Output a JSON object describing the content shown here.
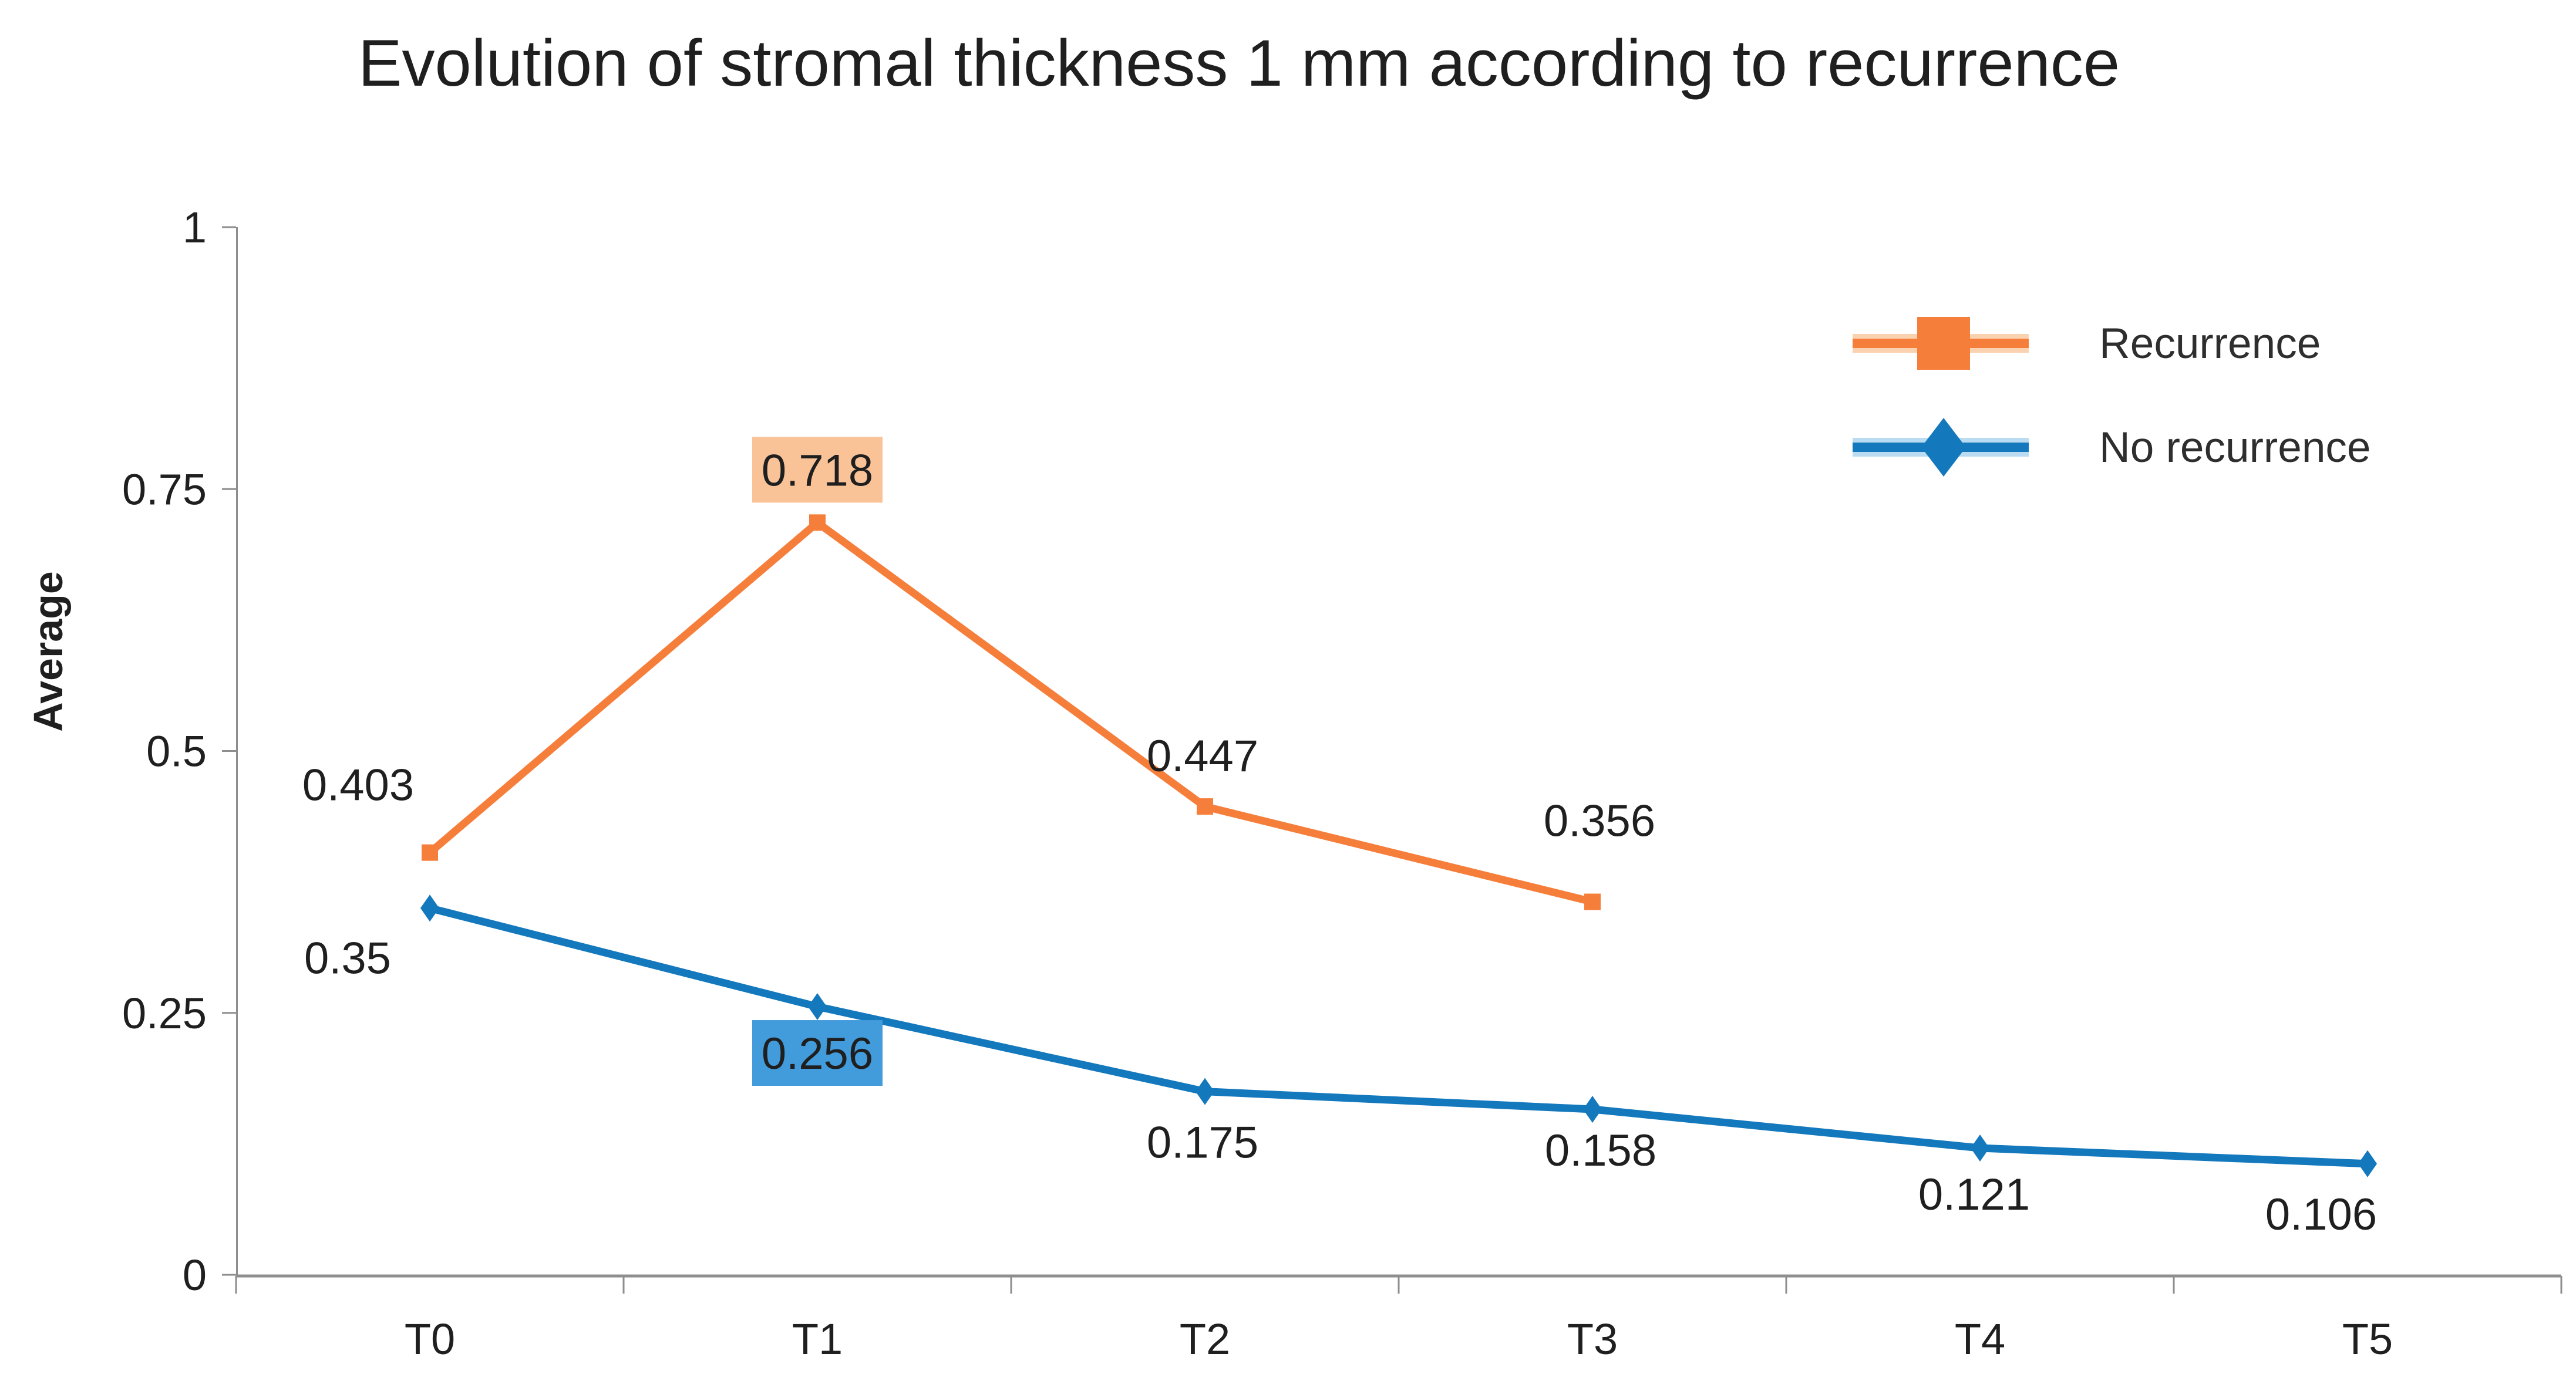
{
  "title": "Evolution of stromal thickness 1 mm according to recurrence",
  "y_axis": {
    "title": "Average",
    "ticks": [
      "1",
      "0.75",
      "0.5",
      "0.25",
      "0"
    ],
    "min": 0,
    "max": 1
  },
  "x_axis": {
    "categories": [
      "T0",
      "T1",
      "T2",
      "T3",
      "T4",
      "T5"
    ]
  },
  "legend": {
    "position": "top-right",
    "items": [
      "Recurrence",
      "No recurrence"
    ]
  },
  "colors": {
    "orange_series": "#F67E3B",
    "orange_highlight": "#FAC397",
    "orange_halo": "#FBD2B0",
    "blue_series": "#1478BD",
    "blue_highlight": "#429BDB",
    "blue_halo": "#B9DCF2",
    "axis": "#8E8E8E",
    "text": "#1F1F1F"
  },
  "chart_data": {
    "type": "line",
    "title": "Evolution of stromal thickness 1 mm according to recurrence",
    "xlabel": "",
    "ylabel": "Average",
    "ylim": [
      0,
      1
    ],
    "grid": false,
    "legend_position": "top-right",
    "categories": [
      "T0",
      "T1",
      "T2",
      "T3",
      "T4",
      "T5"
    ],
    "series": [
      {
        "name": "Recurrence",
        "color": "#F67E3B",
        "label_fill": "#FAC397",
        "marker": "square",
        "values": [
          0.403,
          0.718,
          0.447,
          0.356
        ],
        "labels": [
          "0.403",
          "0.718",
          "0.447",
          "0.356"
        ],
        "label_placement": [
          {
            "dx": -122,
            "dy": -116
          },
          {
            "dx": 0,
            "dy": -90,
            "highlight": true
          },
          {
            "dx": -4,
            "dy": -87
          },
          {
            "dx": 12,
            "dy": -139
          }
        ]
      },
      {
        "name": "No recurrence",
        "color": "#1478BD",
        "label_fill": "#429BDB",
        "marker": "diamond",
        "values": [
          0.35,
          0.256,
          0.175,
          0.158,
          0.121,
          0.106
        ],
        "labels": [
          "0.35",
          "0.256",
          "0.175",
          "0.158",
          "0.121",
          "0.106"
        ],
        "label_placement": [
          {
            "dx": -140,
            "dy": 84
          },
          {
            "dx": 0,
            "dy": 79,
            "highlight": true
          },
          {
            "dx": -4,
            "dy": 86
          },
          {
            "dx": 14,
            "dy": 69
          },
          {
            "dx": -10,
            "dy": 78
          },
          {
            "dx": -79,
            "dy": 85
          }
        ]
      }
    ]
  }
}
